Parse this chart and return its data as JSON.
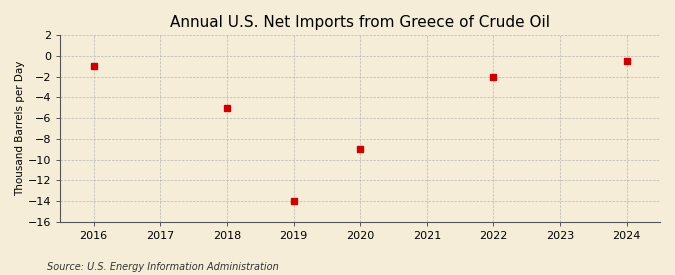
{
  "title": "Annual U.S. Net Imports from Greece of Crude Oil",
  "ylabel": "Thousand Barrels per Day",
  "source": "Source: U.S. Energy Information Administration",
  "years": [
    2016,
    2018,
    2019,
    2020,
    2022,
    2024
  ],
  "values": [
    -1.0,
    -5.0,
    -14.0,
    -9.0,
    -2.0,
    -0.5
  ],
  "xlim": [
    2015.5,
    2024.5
  ],
  "ylim": [
    -16,
    2
  ],
  "yticks": [
    2,
    0,
    -2,
    -4,
    -6,
    -8,
    -10,
    -12,
    -14,
    -16
  ],
  "xticks": [
    2016,
    2017,
    2018,
    2019,
    2020,
    2021,
    2022,
    2023,
    2024
  ],
  "marker_color": "#cc0000",
  "marker_size": 4,
  "background_color": "#f5edd8",
  "grid_color": "#aaaaaa",
  "title_fontsize": 11,
  "label_fontsize": 7.5,
  "tick_fontsize": 8,
  "source_fontsize": 7
}
